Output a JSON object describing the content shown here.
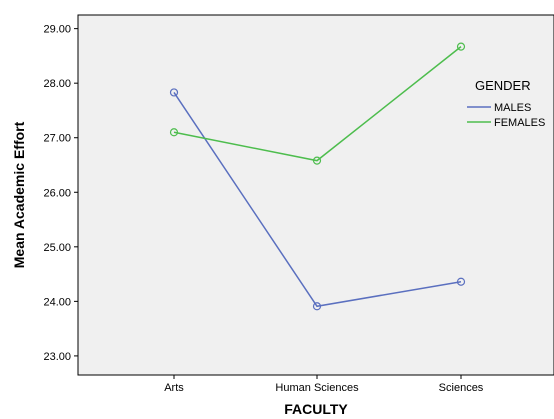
{
  "chart_data": {
    "type": "line",
    "xlabel": "FACULTY",
    "ylabel": "Mean Academic Effort",
    "categories": [
      "Arts",
      "Human Sciences",
      "Sciences"
    ],
    "ylim": [
      22.65,
      29.25
    ],
    "yticks": [
      "23.00",
      "24.00",
      "25.00",
      "26.00",
      "27.00",
      "28.00",
      "29.00"
    ],
    "grid": false,
    "legend": {
      "title": "GENDER",
      "placement": "right"
    },
    "series": [
      {
        "name": "MALES",
        "color": "#5a6fbf",
        "values": [
          27.83,
          23.91,
          24.36
        ],
        "marker": "open-circle"
      },
      {
        "name": "FEMALES",
        "color": "#4dbd4d",
        "values": [
          27.1,
          26.58,
          28.67
        ],
        "marker": "open-circle"
      }
    ]
  }
}
